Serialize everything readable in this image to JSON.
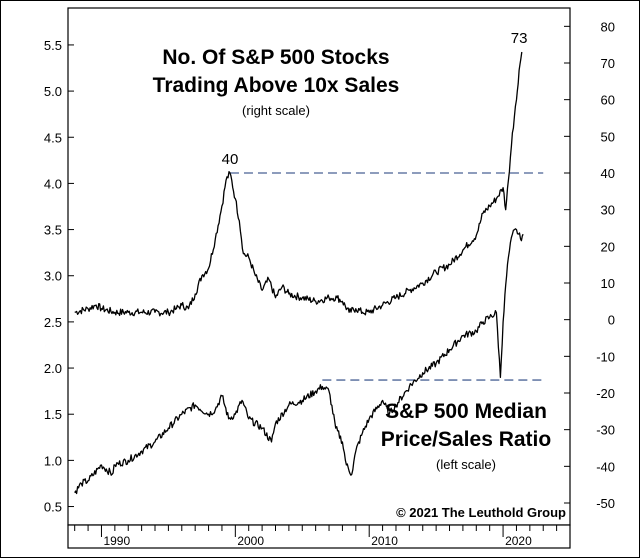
{
  "chart_data": {
    "type": "line",
    "title_lines": [
      "No. Of S&P 500 Stocks",
      "Trading Above 10x Sales"
    ],
    "title_note": "(right scale)",
    "label2_lines": [
      "S&P 500 Median",
      "Price/Sales Ratio"
    ],
    "label2_note": "(left scale)",
    "copyright": "© 2021  The Leuthold Group",
    "x_range": [
      1987.5,
      2025.0
    ],
    "x_ticks": [
      1990,
      2000,
      2010,
      2020
    ],
    "x_tick_labels": [
      "1990",
      "2000",
      "2010",
      "2020"
    ],
    "left_axis": {
      "range": [
        0.3,
        5.9
      ],
      "ticks": [
        0.5,
        1.0,
        1.5,
        2.0,
        2.5,
        3.0,
        3.5,
        4.0,
        4.5,
        5.0,
        5.5
      ],
      "tick_labels": [
        "0.5",
        "1.0",
        "1.5",
        "2.0",
        "2.5",
        "3.0",
        "3.5",
        "4.0",
        "4.5",
        "5.0",
        "5.5"
      ]
    },
    "right_axis": {
      "range": [
        -56,
        85
      ],
      "ticks": [
        -50,
        -40,
        -30,
        -20,
        -10,
        0,
        10,
        20,
        30,
        40,
        50,
        60,
        70,
        80
      ],
      "tick_labels": [
        "-50",
        "-40",
        "-30",
        "-20",
        "-10",
        "0",
        "10",
        "20",
        "30",
        "40",
        "50",
        "60",
        "70",
        "80"
      ]
    },
    "series": [
      {
        "name": "No. Of S&P 500 Stocks Trading Above 10x Sales",
        "axis": "right",
        "x": [
          1988.0,
          1989.0,
          1989.6,
          1990.0,
          1991.0,
          1992.0,
          1993.0,
          1994.0,
          1995.0,
          1995.6,
          1996.0,
          1996.5,
          1997.0,
          1997.5,
          1998.0,
          1998.5,
          1999.0,
          1999.3,
          1999.6,
          2000.0,
          2000.3,
          2000.6,
          2001.0,
          2001.5,
          2002.0,
          2002.5,
          2003.0,
          2003.5,
          2004.0,
          2005.0,
          2006.0,
          2007.0,
          2007.6,
          2008.0,
          2008.5,
          2009.0,
          2009.5,
          2010.0,
          2011.0,
          2012.0,
          2013.0,
          2014.0,
          2015.0,
          2016.0,
          2017.0,
          2018.0,
          2018.5,
          2019.0,
          2019.5,
          2020.0,
          2020.2,
          2020.4,
          2020.7,
          2021.0,
          2021.2,
          2021.4
        ],
        "values": [
          2,
          3,
          4,
          3,
          2,
          2,
          2,
          2,
          2,
          3,
          4,
          3,
          7,
          12,
          14,
          22,
          31,
          38,
          40,
          33,
          27,
          18,
          17,
          12,
          8,
          11,
          6,
          9,
          7,
          6,
          5,
          6,
          6,
          5,
          2,
          3,
          2,
          2,
          4,
          6,
          8,
          10,
          13,
          15,
          19,
          23,
          29,
          31,
          33,
          36,
          30,
          38,
          51,
          60,
          68,
          73
        ]
      },
      {
        "name": "S&P 500 Median Price/Sales Ratio",
        "axis": "left",
        "x": [
          1988.0,
          1988.5,
          1989.0,
          1990.0,
          1990.8,
          1991.0,
          1992.0,
          1993.0,
          1994.0,
          1995.0,
          1996.0,
          1997.0,
          1998.0,
          1998.5,
          1999.0,
          1999.5,
          2000.0,
          2000.5,
          2001.0,
          2002.0,
          2002.7,
          2003.0,
          2004.0,
          2005.0,
          2006.0,
          2006.5,
          2007.0,
          2007.5,
          2008.0,
          2008.3,
          2008.7,
          2009.0,
          2009.5,
          2010.0,
          2011.0,
          2011.5,
          2012.0,
          2013.0,
          2014.0,
          2015.0,
          2016.0,
          2017.0,
          2018.0,
          2018.5,
          2019.0,
          2019.5,
          2019.8,
          2020.0,
          2020.2,
          2020.4,
          2020.7,
          2021.0,
          2021.3,
          2021.5
        ],
        "values": [
          0.65,
          0.75,
          0.78,
          0.95,
          0.85,
          0.95,
          1.0,
          1.1,
          1.2,
          1.35,
          1.5,
          1.6,
          1.5,
          1.55,
          1.7,
          1.45,
          1.5,
          1.65,
          1.45,
          1.35,
          1.2,
          1.4,
          1.6,
          1.65,
          1.75,
          1.8,
          1.75,
          1.35,
          1.2,
          0.95,
          0.85,
          1.1,
          1.3,
          1.45,
          1.65,
          1.5,
          1.6,
          1.8,
          1.95,
          2.05,
          2.2,
          2.35,
          2.4,
          2.5,
          2.55,
          2.6,
          1.9,
          2.5,
          2.9,
          3.2,
          3.45,
          3.5,
          3.4,
          3.45
        ]
      }
    ],
    "annotations": [
      {
        "text": "40",
        "x": 1999.6,
        "value": 40,
        "axis": "right"
      },
      {
        "text": "73",
        "x": 2021.2,
        "value": 73,
        "axis": "right"
      }
    ],
    "reference_lines": [
      {
        "axis": "right",
        "value": 40,
        "x_start": 1999.6,
        "x_end": 2023.0,
        "style": "dashed",
        "color": "#7d8fb3"
      },
      {
        "axis": "left",
        "value": 1.87,
        "x_start": 2006.5,
        "x_end": 2023.0,
        "style": "dashed",
        "color": "#7d8fb3"
      }
    ],
    "colors": {
      "line": "#000000",
      "dashed": "#7d8fb3",
      "frame": "#000000",
      "text": "#000000"
    }
  }
}
